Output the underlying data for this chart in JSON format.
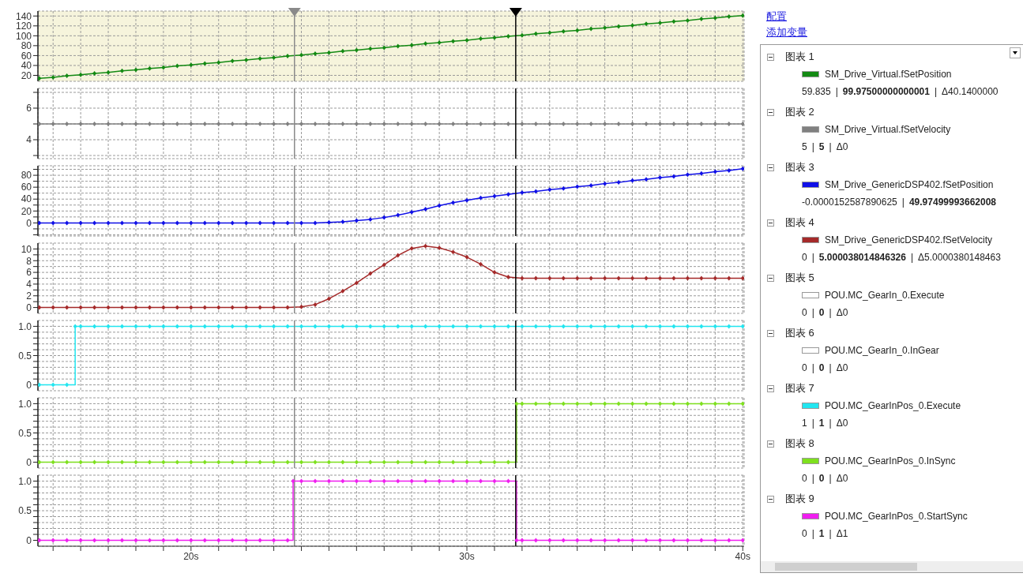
{
  "chart_data": [
    {
      "type": "line",
      "x": [
        14.5,
        15,
        15.5,
        16,
        16.5,
        17,
        17.5,
        18,
        18.5,
        19,
        19.5,
        20,
        20.5,
        21,
        21.5,
        22,
        22.5,
        23,
        23.5,
        24,
        24.5,
        25,
        25.5,
        26,
        26.5,
        27,
        27.5,
        28,
        28.5,
        29,
        29.5,
        30,
        30.5,
        31,
        31.5,
        32,
        32.5,
        33,
        33.5,
        34,
        34.5,
        35,
        35.5,
        36,
        36.5,
        37,
        37.5,
        38,
        38.5,
        39,
        39.5,
        40
      ],
      "series": [
        {
          "color": "#138a13",
          "values": [
            14,
            16,
            19,
            21,
            24,
            26,
            29,
            31,
            34,
            36,
            39,
            41,
            44,
            46,
            49,
            51,
            54,
            56,
            59,
            61,
            64,
            66,
            69,
            71,
            74,
            76,
            79,
            81,
            84,
            86,
            89,
            91,
            94,
            96,
            99,
            101,
            104,
            106,
            109,
            111,
            114,
            116,
            119,
            121,
            124,
            126,
            129,
            131,
            134,
            136,
            139,
            141
          ]
        }
      ],
      "xlim": [
        14.45,
        40.05
      ],
      "xticks": [
        {
          "value": 15,
          "label": null
        },
        {
          "value": 16,
          "label": null
        },
        {
          "value": 17,
          "label": null
        },
        {
          "value": 18,
          "label": null
        },
        {
          "value": 19,
          "label": null
        },
        {
          "value": 20,
          "label": null
        },
        {
          "value": 21,
          "label": null
        },
        {
          "value": 22,
          "label": null
        },
        {
          "value": 23,
          "label": null
        },
        {
          "value": 24,
          "label": null
        },
        {
          "value": 25,
          "label": null
        },
        {
          "value": 26,
          "label": null
        },
        {
          "value": 27,
          "label": null
        },
        {
          "value": 28,
          "label": null
        },
        {
          "value": 29,
          "label": null
        },
        {
          "value": 30,
          "label": null
        },
        {
          "value": 31,
          "label": null
        },
        {
          "value": 32,
          "label": null
        },
        {
          "value": 33,
          "label": null
        },
        {
          "value": 34,
          "label": null
        },
        {
          "value": 35,
          "label": null
        },
        {
          "value": 36,
          "label": null
        },
        {
          "value": 37,
          "label": null
        },
        {
          "value": 38,
          "label": null
        },
        {
          "value": 39,
          "label": null
        },
        {
          "value": 40,
          "label": null
        }
      ],
      "ylim": [
        8,
        150
      ],
      "yticks": [
        20,
        40,
        60,
        80,
        100,
        120,
        140
      ],
      "tick_labels": "y",
      "grid": true,
      "marker": "diamond",
      "ref_lines": [
        {
          "axis": "x",
          "value": 23.75,
          "color": "#8a8a8a"
        },
        {
          "axis": "x",
          "value": 31.77,
          "color": "#000000"
        }
      ]
    },
    {
      "type": "line",
      "x": [
        14.5,
        15,
        15.5,
        16,
        16.5,
        17,
        17.5,
        18,
        18.5,
        19,
        19.5,
        20,
        20.5,
        21,
        21.5,
        22,
        22.5,
        23,
        23.5,
        24,
        24.5,
        25,
        25.5,
        26,
        26.5,
        27,
        27.5,
        28,
        28.5,
        29,
        29.5,
        30,
        30.5,
        31,
        31.5,
        32,
        32.5,
        33,
        33.5,
        34,
        34.5,
        35,
        35.5,
        36,
        36.5,
        37,
        37.5,
        38,
        38.5,
        39,
        39.5,
        40
      ],
      "series": [
        {
          "color": "#808080",
          "values": [
            5,
            5,
            5,
            5,
            5,
            5,
            5,
            5,
            5,
            5,
            5,
            5,
            5,
            5,
            5,
            5,
            5,
            5,
            5,
            5,
            5,
            5,
            5,
            5,
            5,
            5,
            5,
            5,
            5,
            5,
            5,
            5,
            5,
            5,
            5,
            5,
            5,
            5,
            5,
            5,
            5,
            5,
            5,
            5,
            5,
            5,
            5,
            5,
            5,
            5,
            5,
            5
          ]
        }
      ],
      "xlim": [
        14.45,
        40.05
      ],
      "xticks": [
        {
          "value": 15,
          "label": null
        },
        {
          "value": 16,
          "label": null
        },
        {
          "value": 17,
          "label": null
        },
        {
          "value": 18,
          "label": null
        },
        {
          "value": 19,
          "label": null
        },
        {
          "value": 20,
          "label": null
        },
        {
          "value": 21,
          "label": null
        },
        {
          "value": 22,
          "label": null
        },
        {
          "value": 23,
          "label": null
        },
        {
          "value": 24,
          "label": null
        },
        {
          "value": 25,
          "label": null
        },
        {
          "value": 26,
          "label": null
        },
        {
          "value": 27,
          "label": null
        },
        {
          "value": 28,
          "label": null
        },
        {
          "value": 29,
          "label": null
        },
        {
          "value": 30,
          "label": null
        },
        {
          "value": 31,
          "label": null
        },
        {
          "value": 32,
          "label": null
        },
        {
          "value": 33,
          "label": null
        },
        {
          "value": 34,
          "label": null
        },
        {
          "value": 35,
          "label": null
        },
        {
          "value": 36,
          "label": null
        },
        {
          "value": 37,
          "label": null
        },
        {
          "value": 38,
          "label": null
        },
        {
          "value": 39,
          "label": null
        },
        {
          "value": 40,
          "label": null
        }
      ],
      "ylim": [
        2.8,
        7.25
      ],
      "yticks": [
        {
          "value": 3,
          "label": null
        },
        4,
        {
          "value": 5,
          "label": null
        },
        6,
        {
          "value": 7,
          "label": null
        }
      ],
      "tick_labels": "y",
      "grid": true,
      "marker": "diamond",
      "ref_lines": [
        {
          "axis": "x",
          "value": 23.75,
          "color": "#8a8a8a"
        },
        {
          "axis": "x",
          "value": 31.77,
          "color": "#000000"
        }
      ]
    },
    {
      "type": "line",
      "x": [
        14.5,
        15,
        15.5,
        16,
        16.5,
        17,
        17.5,
        18,
        18.5,
        19,
        19.5,
        20,
        20.5,
        21,
        21.5,
        22,
        22.5,
        23,
        23.5,
        24,
        24.5,
        25,
        25.5,
        26,
        26.5,
        27,
        27.5,
        28,
        28.5,
        29,
        29.5,
        30,
        30.5,
        31,
        31.5,
        32,
        32.5,
        33,
        33.5,
        34,
        34.5,
        35,
        35.5,
        36,
        36.5,
        37,
        37.5,
        38,
        38.5,
        39,
        39.5,
        40
      ],
      "series": [
        {
          "color": "#1010e8",
          "values": [
            0,
            0,
            0,
            0,
            0,
            0,
            0,
            0,
            0,
            0,
            0,
            0,
            0,
            0,
            0,
            0,
            0,
            0,
            0,
            0,
            0,
            1,
            2,
            4,
            6,
            9,
            13,
            18,
            23,
            29,
            34,
            38,
            42,
            45,
            48,
            51,
            53,
            56,
            58,
            61,
            63,
            66,
            68,
            71,
            73,
            76,
            78,
            81,
            83,
            86,
            88,
            91
          ]
        }
      ],
      "xlim": [
        14.45,
        40.05
      ],
      "xticks": [
        {
          "value": 15,
          "label": null
        },
        {
          "value": 16,
          "label": null
        },
        {
          "value": 17,
          "label": null
        },
        {
          "value": 18,
          "label": null
        },
        {
          "value": 19,
          "label": null
        },
        {
          "value": 20,
          "label": null
        },
        {
          "value": 21,
          "label": null
        },
        {
          "value": 22,
          "label": null
        },
        {
          "value": 23,
          "label": null
        },
        {
          "value": 24,
          "label": null
        },
        {
          "value": 25,
          "label": null
        },
        {
          "value": 26,
          "label": null
        },
        {
          "value": 27,
          "label": null
        },
        {
          "value": 28,
          "label": null
        },
        {
          "value": 29,
          "label": null
        },
        {
          "value": 30,
          "label": null
        },
        {
          "value": 31,
          "label": null
        },
        {
          "value": 32,
          "label": null
        },
        {
          "value": 33,
          "label": null
        },
        {
          "value": 34,
          "label": null
        },
        {
          "value": 35,
          "label": null
        },
        {
          "value": 36,
          "label": null
        },
        {
          "value": 37,
          "label": null
        },
        {
          "value": 38,
          "label": null
        },
        {
          "value": 39,
          "label": null
        },
        {
          "value": 40,
          "label": null
        }
      ],
      "ylim": [
        -22,
        96
      ],
      "yticks": [
        {
          "value": -20,
          "label": null
        },
        {
          "value": -10,
          "label": null
        },
        0,
        {
          "value": 10,
          "label": null
        },
        20,
        {
          "value": 30,
          "label": null
        },
        40,
        {
          "value": 50,
          "label": null
        },
        60,
        {
          "value": 70,
          "label": null
        },
        80,
        {
          "value": 90,
          "label": null
        }
      ],
      "tick_labels": "y",
      "grid": true,
      "marker": "diamond",
      "ref_lines": [
        {
          "axis": "x",
          "value": 23.75,
          "color": "#8a8a8a"
        },
        {
          "axis": "x",
          "value": 31.77,
          "color": "#000000"
        }
      ]
    },
    {
      "type": "line",
      "x": [
        14.5,
        15,
        15.5,
        16,
        16.5,
        17,
        17.5,
        18,
        18.5,
        19,
        19.5,
        20,
        20.5,
        21,
        21.5,
        22,
        22.5,
        23,
        23.5,
        24,
        24.5,
        25,
        25.5,
        26,
        26.5,
        27,
        27.5,
        28,
        28.5,
        29,
        29.5,
        30,
        30.5,
        31,
        31.5,
        32,
        32.5,
        33,
        33.5,
        34,
        34.5,
        35,
        35.5,
        36,
        36.5,
        37,
        37.5,
        38,
        38.5,
        39,
        39.5,
        40
      ],
      "series": [
        {
          "color": "#a52a2a",
          "values": [
            0,
            0,
            0,
            0,
            0,
            0,
            0,
            0,
            0,
            0,
            0,
            0,
            0,
            0,
            0,
            0,
            0,
            0,
            0,
            0.1,
            0.5,
            1.5,
            2.8,
            4.2,
            5.8,
            7.3,
            8.9,
            10.1,
            10.5,
            10.2,
            9.5,
            8.6,
            7.4,
            6,
            5.2,
            5,
            5,
            5,
            5,
            5,
            5,
            5,
            5,
            5,
            5,
            5,
            5,
            5,
            5,
            5,
            5,
            5
          ]
        }
      ],
      "xlim": [
        14.45,
        40.05
      ],
      "xticks": [
        {
          "value": 15,
          "label": null
        },
        {
          "value": 16,
          "label": null
        },
        {
          "value": 17,
          "label": null
        },
        {
          "value": 18,
          "label": null
        },
        {
          "value": 19,
          "label": null
        },
        {
          "value": 20,
          "label": null
        },
        {
          "value": 21,
          "label": null
        },
        {
          "value": 22,
          "label": null
        },
        {
          "value": 23,
          "label": null
        },
        {
          "value": 24,
          "label": null
        },
        {
          "value": 25,
          "label": null
        },
        {
          "value": 26,
          "label": null
        },
        {
          "value": 27,
          "label": null
        },
        {
          "value": 28,
          "label": null
        },
        {
          "value": 29,
          "label": null
        },
        {
          "value": 30,
          "label": null
        },
        {
          "value": 31,
          "label": null
        },
        {
          "value": 32,
          "label": null
        },
        {
          "value": 33,
          "label": null
        },
        {
          "value": 34,
          "label": null
        },
        {
          "value": 35,
          "label": null
        },
        {
          "value": 36,
          "label": null
        },
        {
          "value": 37,
          "label": null
        },
        {
          "value": 38,
          "label": null
        },
        {
          "value": 39,
          "label": null
        },
        {
          "value": 40,
          "label": null
        }
      ],
      "ylim": [
        -1,
        11
      ],
      "yticks": [
        0,
        {
          "value": 1,
          "label": null
        },
        2,
        {
          "value": 3,
          "label": null
        },
        4,
        {
          "value": 5,
          "label": null
        },
        6,
        {
          "value": 7,
          "label": null
        },
        8,
        {
          "value": 9,
          "label": null
        },
        10
      ],
      "tick_labels": "y",
      "grid": true,
      "marker": "diamond",
      "ref_lines": [
        {
          "axis": "x",
          "value": 23.75,
          "color": "#8a8a8a"
        },
        {
          "axis": "x",
          "value": 31.77,
          "color": "#000000"
        }
      ]
    },
    {
      "type": "step",
      "series": [
        {
          "color": "#22e6f0",
          "x": [
            14.5,
            15,
            15.5,
            15.8,
            16,
            16.5,
            17,
            17.5,
            18,
            18.5,
            19,
            19.5,
            20,
            20.5,
            21,
            21.5,
            22,
            22.5,
            23,
            23.5,
            24,
            24.5,
            25,
            25.5,
            26,
            26.5,
            27,
            27.5,
            28,
            28.5,
            29,
            29.5,
            30,
            30.5,
            31,
            31.5,
            32,
            32.5,
            33,
            33.5,
            34,
            34.5,
            35,
            35.5,
            36,
            36.5,
            37,
            37.5,
            38,
            38.5,
            39,
            39.5,
            40
          ],
          "values": [
            0,
            0,
            0,
            1,
            1,
            1,
            1,
            1,
            1,
            1,
            1,
            1,
            1,
            1,
            1,
            1,
            1,
            1,
            1,
            1,
            1,
            1,
            1,
            1,
            1,
            1,
            1,
            1,
            1,
            1,
            1,
            1,
            1,
            1,
            1,
            1,
            1,
            1,
            1,
            1,
            1,
            1,
            1,
            1,
            1,
            1,
            1,
            1,
            1,
            1,
            1,
            1,
            1
          ]
        }
      ],
      "xlim": [
        14.45,
        40.05
      ],
      "xticks": [
        {
          "value": 15,
          "label": null
        },
        {
          "value": 16,
          "label": null
        },
        {
          "value": 17,
          "label": null
        },
        {
          "value": 18,
          "label": null
        },
        {
          "value": 19,
          "label": null
        },
        {
          "value": 20,
          "label": null
        },
        {
          "value": 21,
          "label": null
        },
        {
          "value": 22,
          "label": null
        },
        {
          "value": 23,
          "label": null
        },
        {
          "value": 24,
          "label": null
        },
        {
          "value": 25,
          "label": null
        },
        {
          "value": 26,
          "label": null
        },
        {
          "value": 27,
          "label": null
        },
        {
          "value": 28,
          "label": null
        },
        {
          "value": 29,
          "label": null
        },
        {
          "value": 30,
          "label": null
        },
        {
          "value": 31,
          "label": null
        },
        {
          "value": 32,
          "label": null
        },
        {
          "value": 33,
          "label": null
        },
        {
          "value": 34,
          "label": null
        },
        {
          "value": 35,
          "label": null
        },
        {
          "value": 36,
          "label": null
        },
        {
          "value": 37,
          "label": null
        },
        {
          "value": 38,
          "label": null
        },
        {
          "value": 39,
          "label": null
        },
        {
          "value": 40,
          "label": null
        }
      ],
      "ylim": [
        -0.1,
        1.1
      ],
      "yticks": [
        0,
        {
          "value": 0.1,
          "label": null
        },
        {
          "value": 0.2,
          "label": null
        },
        {
          "value": 0.3,
          "label": null
        },
        {
          "value": 0.4,
          "label": null
        },
        0.5,
        {
          "value": 0.6,
          "label": null
        },
        {
          "value": 0.7,
          "label": null
        },
        {
          "value": 0.8,
          "label": null
        },
        {
          "value": 0.9,
          "label": null
        },
        {
          "value": 1,
          "label": "1.0"
        }
      ],
      "tick_labels": "y",
      "grid": true,
      "marker": "diamond",
      "ref_lines": [
        {
          "axis": "x",
          "value": 23.75,
          "color": "#8a8a8a"
        },
        {
          "axis": "x",
          "value": 31.77,
          "color": "#000000"
        }
      ]
    },
    {
      "type": "step",
      "series": [
        {
          "color": "#7ee01e",
          "x": [
            14.5,
            15,
            15.5,
            16,
            16.5,
            17,
            17.5,
            18,
            18.5,
            19,
            19.5,
            20,
            20.5,
            21,
            21.5,
            22,
            22.5,
            23,
            23.5,
            24,
            24.5,
            25,
            25.5,
            26,
            26.5,
            27,
            27.5,
            28,
            28.5,
            29,
            29.5,
            30,
            30.5,
            31,
            31.5,
            31.8,
            32,
            32.5,
            33,
            33.5,
            34,
            34.5,
            35,
            35.5,
            36,
            36.5,
            37,
            37.5,
            38,
            38.5,
            39,
            39.5,
            40
          ],
          "values": [
            0,
            0,
            0,
            0,
            0,
            0,
            0,
            0,
            0,
            0,
            0,
            0,
            0,
            0,
            0,
            0,
            0,
            0,
            0,
            0,
            0,
            0,
            0,
            0,
            0,
            0,
            0,
            0,
            0,
            0,
            0,
            0,
            0,
            0,
            0,
            1,
            1,
            1,
            1,
            1,
            1,
            1,
            1,
            1,
            1,
            1,
            1,
            1,
            1,
            1,
            1,
            1,
            1
          ]
        }
      ],
      "xlim": [
        14.45,
        40.05
      ],
      "xticks": [
        {
          "value": 15,
          "label": null
        },
        {
          "value": 16,
          "label": null
        },
        {
          "value": 17,
          "label": null
        },
        {
          "value": 18,
          "label": null
        },
        {
          "value": 19,
          "label": null
        },
        {
          "value": 20,
          "label": null
        },
        {
          "value": 21,
          "label": null
        },
        {
          "value": 22,
          "label": null
        },
        {
          "value": 23,
          "label": null
        },
        {
          "value": 24,
          "label": null
        },
        {
          "value": 25,
          "label": null
        },
        {
          "value": 26,
          "label": null
        },
        {
          "value": 27,
          "label": null
        },
        {
          "value": 28,
          "label": null
        },
        {
          "value": 29,
          "label": null
        },
        {
          "value": 30,
          "label": null
        },
        {
          "value": 31,
          "label": null
        },
        {
          "value": 32,
          "label": null
        },
        {
          "value": 33,
          "label": null
        },
        {
          "value": 34,
          "label": null
        },
        {
          "value": 35,
          "label": null
        },
        {
          "value": 36,
          "label": null
        },
        {
          "value": 37,
          "label": null
        },
        {
          "value": 38,
          "label": null
        },
        {
          "value": 39,
          "label": null
        },
        {
          "value": 40,
          "label": null
        }
      ],
      "ylim": [
        -0.1,
        1.1
      ],
      "yticks": [
        0,
        {
          "value": 0.1,
          "label": null
        },
        {
          "value": 0.2,
          "label": null
        },
        {
          "value": 0.3,
          "label": null
        },
        {
          "value": 0.4,
          "label": null
        },
        0.5,
        {
          "value": 0.6,
          "label": null
        },
        {
          "value": 0.7,
          "label": null
        },
        {
          "value": 0.8,
          "label": null
        },
        {
          "value": 0.9,
          "label": null
        },
        {
          "value": 1,
          "label": "1.0"
        }
      ],
      "tick_labels": "y",
      "grid": true,
      "marker": "diamond",
      "ref_lines": [
        {
          "axis": "x",
          "value": 23.75,
          "color": "#8a8a8a"
        },
        {
          "axis": "x",
          "value": 31.77,
          "color": "#000000"
        }
      ]
    },
    {
      "type": "step",
      "series": [
        {
          "color": "#f01ef0",
          "x": [
            14.5,
            15,
            15.5,
            16,
            16.5,
            17,
            17.5,
            18,
            18.5,
            19,
            19.5,
            20,
            20.5,
            21,
            21.5,
            22,
            22.5,
            23,
            23.5,
            23.7,
            24,
            24.5,
            25,
            25.5,
            26,
            26.5,
            27,
            27.5,
            28,
            28.5,
            29,
            29.5,
            30,
            30.5,
            31,
            31.5,
            31.8,
            32,
            32.5,
            33,
            33.5,
            34,
            34.5,
            35,
            35.5,
            36,
            36.5,
            37,
            37.5,
            38,
            38.5,
            39,
            39.5,
            40
          ],
          "values": [
            0,
            0,
            0,
            0,
            0,
            0,
            0,
            0,
            0,
            0,
            0,
            0,
            0,
            0,
            0,
            0,
            0,
            0,
            0,
            1,
            1,
            1,
            1,
            1,
            1,
            1,
            1,
            1,
            1,
            1,
            1,
            1,
            1,
            1,
            1,
            1,
            0,
            0,
            0,
            0,
            0,
            0,
            0,
            0,
            0,
            0,
            0,
            0,
            0,
            0,
            0,
            0,
            0,
            0
          ]
        }
      ],
      "xlim": [
        14.45,
        40.05
      ],
      "xticks": [
        {
          "value": 15,
          "label": null
        },
        {
          "value": 16,
          "label": null
        },
        {
          "value": 17,
          "label": null
        },
        {
          "value": 18,
          "label": null
        },
        {
          "value": 19,
          "label": null
        },
        {
          "value": 20,
          "label": "20s"
        },
        {
          "value": 21,
          "label": null
        },
        {
          "value": 22,
          "label": null
        },
        {
          "value": 23,
          "label": null
        },
        {
          "value": 24,
          "label": null
        },
        {
          "value": 25,
          "label": null
        },
        {
          "value": 26,
          "label": null
        },
        {
          "value": 27,
          "label": null
        },
        {
          "value": 28,
          "label": null
        },
        {
          "value": 29,
          "label": null
        },
        {
          "value": 30,
          "label": "30s"
        },
        {
          "value": 31,
          "label": null
        },
        {
          "value": 32,
          "label": null
        },
        {
          "value": 33,
          "label": null
        },
        {
          "value": 34,
          "label": null
        },
        {
          "value": 35,
          "label": null
        },
        {
          "value": 36,
          "label": null
        },
        {
          "value": 37,
          "label": null
        },
        {
          "value": 38,
          "label": null
        },
        {
          "value": 39,
          "label": null
        },
        {
          "value": 40,
          "label": "40s"
        }
      ],
      "ylim": [
        -0.1,
        1.1
      ],
      "yticks": [
        0,
        {
          "value": 0.1,
          "label": null
        },
        {
          "value": 0.2,
          "label": null
        },
        {
          "value": 0.3,
          "label": null
        },
        {
          "value": 0.4,
          "label": null
        },
        0.5,
        {
          "value": 0.6,
          "label": null
        },
        {
          "value": 0.7,
          "label": null
        },
        {
          "value": 0.8,
          "label": null
        },
        {
          "value": 0.9,
          "label": null
        },
        {
          "value": 1,
          "label": "1.0"
        }
      ],
      "grid": true,
      "marker": "diamond",
      "ref_lines": [
        {
          "axis": "x",
          "value": 23.75,
          "color": "#8a8a8a"
        },
        {
          "axis": "x",
          "value": 31.77,
          "color": "#000000"
        }
      ]
    },
    {
      "type": "other",
      "title": "配置",
      "subtitle": "添加变量",
      "annotations": [
        "图表 1",
        "SM_Drive_Virtual.fSetPosition",
        "59.835 | 99.97500000000001 | Δ40.1400000",
        "图表 2",
        "SM_Drive_Virtual.fSetVelocity",
        "5 | 5 | Δ0",
        "图表 3",
        "SM_Drive_GenericDSP402.fSetPosition",
        "-0.0000152587890625 | 49.97499993662008",
        "图表 4",
        "SM_Drive_GenericDSP402.fSetVelocity",
        "0 | 5.000038014846326 | Δ5.0000380148463",
        "图表 5",
        "POU.MC_GearIn_0.Execute",
        "0 | 0 | Δ0",
        "图表 6",
        "POU.MC_GearIn_0.InGear",
        "0 | 0 | Δ0",
        "图表 7",
        "POU.MC_GearInPos_0.Execute",
        "1 | 1 | Δ0",
        "图表 8",
        "POU.MC_GearInPos_0.InSync",
        "0 | 0 | Δ0",
        "图表 9",
        "POU.MC_GearInPos_0.StartSync",
        "0 | 1 | Δ1"
      ],
      "colors": [
        "#138a13",
        "#808080",
        "#1010e8",
        "#a52a2a",
        "#ffffff",
        "#ffffff",
        "#22e6f0",
        "#7ee01e",
        "#f01ef0"
      ]
    }
  ]
}
